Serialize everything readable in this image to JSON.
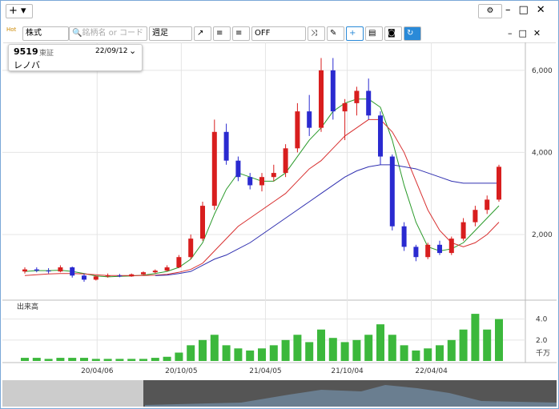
{
  "app": {
    "new_button": "+",
    "toolbar": {
      "hot": "Hot",
      "market": "株式",
      "search_placeholder": "銘柄名 or コード",
      "period": "週足",
      "indicator": "OFF"
    }
  },
  "symbol": {
    "code": "9519",
    "exchange": "東証",
    "date": "22/09/12",
    "name": "レノバ"
  },
  "chart_data": {
    "type": "candlestick",
    "up_color": "#d81e1e",
    "down_color": "#2a2ad0",
    "ohlc": [
      [
        1100,
        1200,
        1050,
        1150
      ],
      [
        1150,
        1200,
        1080,
        1120
      ],
      [
        1120,
        1180,
        1050,
        1100
      ],
      [
        1100,
        1250,
        1080,
        1200
      ],
      [
        1200,
        1220,
        950,
        1000
      ],
      [
        1000,
        1050,
        850,
        900
      ],
      [
        900,
        1000,
        880,
        980
      ],
      [
        980,
        1050,
        950,
        1000
      ],
      [
        1000,
        1040,
        960,
        980
      ],
      [
        980,
        1050,
        970,
        1030
      ],
      [
        1030,
        1100,
        1000,
        1080
      ],
      [
        1080,
        1150,
        1050,
        1120
      ],
      [
        1120,
        1250,
        1100,
        1200
      ],
      [
        1200,
        1500,
        1180,
        1450
      ],
      [
        1450,
        2000,
        1400,
        1900
      ],
      [
        1900,
        2800,
        1850,
        2700
      ],
      [
        2700,
        4800,
        2600,
        4500
      ],
      [
        4500,
        4700,
        3700,
        3800
      ],
      [
        3800,
        3900,
        3300,
        3400
      ],
      [
        3400,
        3500,
        3100,
        3200
      ],
      [
        3200,
        3500,
        3050,
        3400
      ],
      [
        3400,
        3700,
        3300,
        3500
      ],
      [
        3500,
        4200,
        3400,
        4100
      ],
      [
        4100,
        5200,
        4000,
        5000
      ],
      [
        5000,
        5400,
        4400,
        4600
      ],
      [
        4600,
        6300,
        4500,
        6000
      ],
      [
        6000,
        6300,
        4800,
        5000
      ],
      [
        5000,
        5300,
        4300,
        5200
      ],
      [
        5200,
        5600,
        4900,
        5500
      ],
      [
        5500,
        5800,
        4800,
        4900
      ],
      [
        4900,
        5000,
        3700,
        3900
      ],
      [
        3900,
        3950,
        2100,
        2200
      ],
      [
        2200,
        2300,
        1600,
        1700
      ],
      [
        1700,
        1750,
        1350,
        1450
      ],
      [
        1450,
        1800,
        1400,
        1750
      ],
      [
        1750,
        1850,
        1500,
        1550
      ],
      [
        1550,
        1950,
        1500,
        1900
      ],
      [
        1900,
        2400,
        1850,
        2300
      ],
      [
        2300,
        2700,
        2200,
        2600
      ],
      [
        2600,
        2950,
        2500,
        2850
      ],
      [
        2850,
        3700,
        2800,
        3650
      ]
    ],
    "lines": [
      {
        "color": "#2a9a2a",
        "values": [
          1100,
          1120,
          1120,
          1130,
          1100,
          1050,
          990,
          970,
          980,
          990,
          1010,
          1050,
          1100,
          1200,
          1400,
          1800,
          2500,
          3100,
          3500,
          3400,
          3300,
          3300,
          3500,
          3900,
          4300,
          4600,
          5000,
          5200,
          5300,
          5300,
          5100,
          4300,
          3200,
          2300,
          1700,
          1600,
          1650,
          1800,
          2100,
          2400,
          2700
        ]
      },
      {
        "color": "#d83030",
        "values": [
          1000,
          1020,
          1040,
          1050,
          1050,
          1040,
          1020,
          1000,
          1000,
          1000,
          1000,
          1010,
          1030,
          1080,
          1150,
          1300,
          1600,
          1900,
          2200,
          2400,
          2600,
          2800,
          3000,
          3300,
          3600,
          3800,
          4100,
          4400,
          4600,
          4800,
          4800,
          4500,
          4000,
          3300,
          2600,
          2100,
          1800,
          1700,
          1800,
          2000,
          2300
        ]
      },
      {
        "color": "#3030b0",
        "values": [
          null,
          null,
          null,
          null,
          null,
          null,
          null,
          null,
          null,
          null,
          null,
          1000,
          1010,
          1050,
          1100,
          1250,
          1400,
          1500,
          1650,
          1800,
          2000,
          2200,
          2400,
          2600,
          2800,
          3000,
          3200,
          3400,
          3550,
          3650,
          3700,
          3700,
          3650,
          3600,
          3500,
          3400,
          3300,
          3250,
          3250,
          3250,
          3250
        ]
      }
    ],
    "ylim": [
      440,
      6680
    ],
    "yticks": [
      {
        "value": 2000,
        "label": "2,000"
      },
      {
        "value": 4000,
        "label": "4,000"
      },
      {
        "value": 6000,
        "label": "6,000"
      }
    ],
    "xticks": [
      {
        "value": 6.1,
        "label": "20/04/06"
      },
      {
        "value": 13.2,
        "label": "20/10/05"
      },
      {
        "value": 20.3,
        "label": "21/04/05"
      },
      {
        "value": 27.2,
        "label": "21/10/04"
      },
      {
        "value": 34.3,
        "label": "22/04/04"
      }
    ],
    "volume": {
      "label": "出来高",
      "unit": "千万",
      "color": "#3cb83c",
      "ylim": [
        0,
        5.5
      ],
      "yticks": [
        {
          "value": 2,
          "label": "2.0"
        },
        {
          "value": 4,
          "label": "4.0"
        }
      ],
      "values": [
        0.3,
        0.3,
        0.2,
        0.3,
        0.3,
        0.3,
        0.2,
        0.2,
        0.2,
        0.2,
        0.2,
        0.3,
        0.4,
        0.8,
        1.5,
        2.0,
        2.5,
        1.5,
        1.2,
        1.0,
        1.2,
        1.5,
        2.0,
        2.5,
        1.8,
        3.0,
        2.2,
        1.8,
        2.0,
        2.5,
        3.5,
        2.5,
        1.5,
        1.0,
        1.2,
        1.5,
        2.0,
        3.0,
        4.5,
        3.0,
        4.0
      ]
    }
  }
}
